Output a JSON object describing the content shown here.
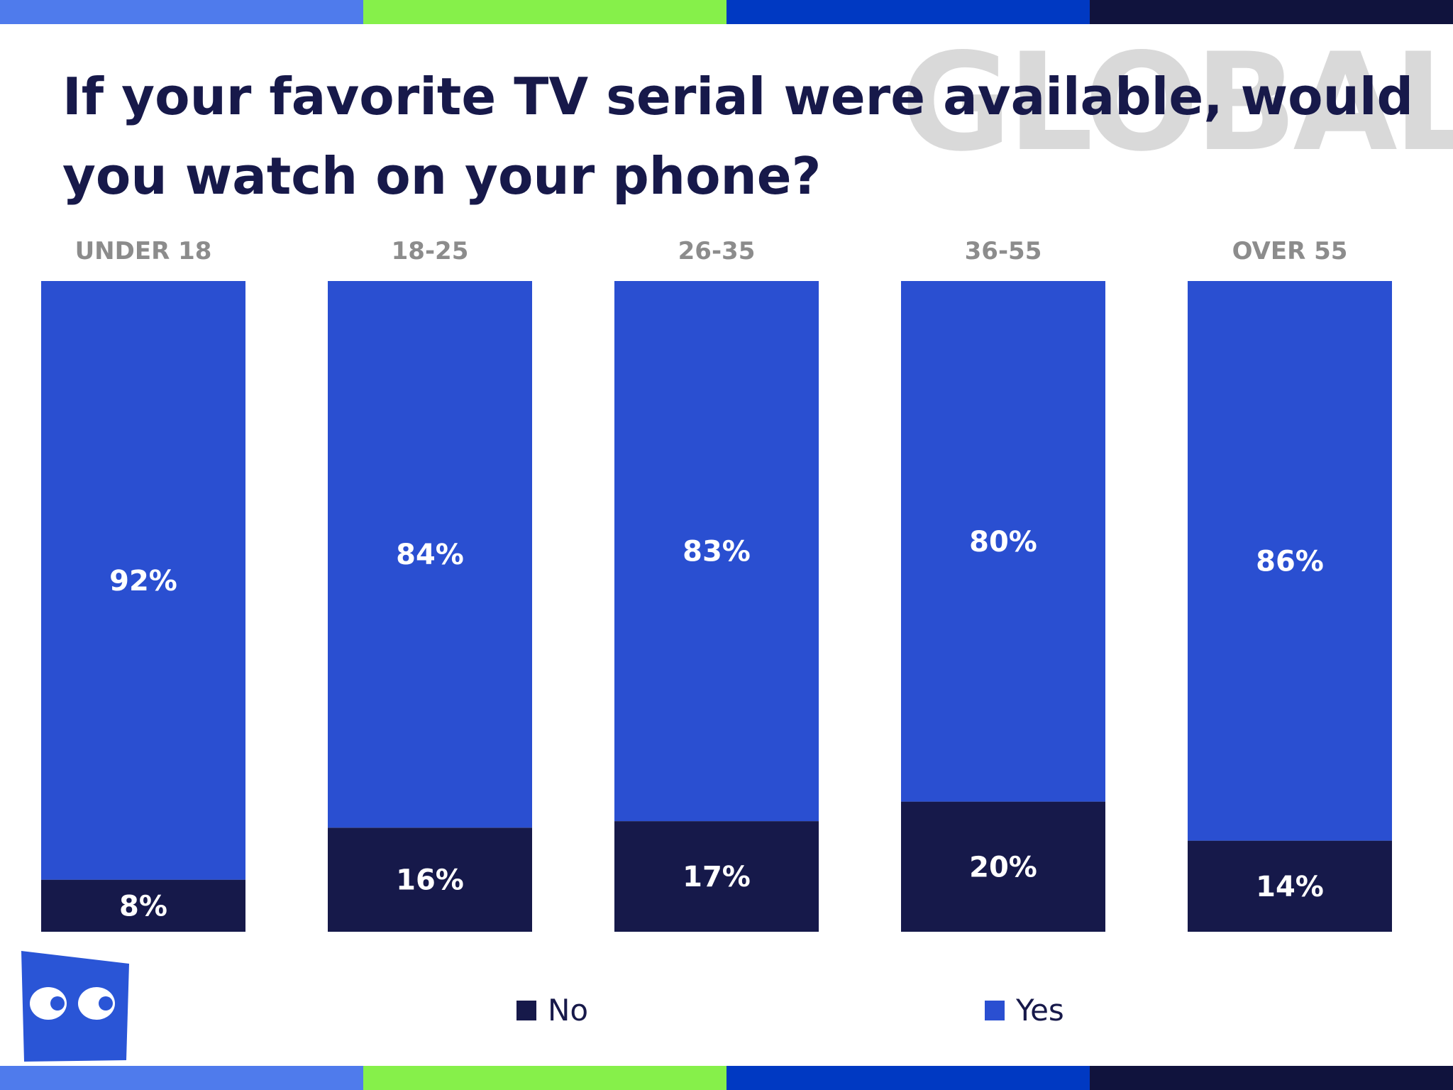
{
  "header": {
    "title": "If your favorite TV serial were available, would you watch on your phone?",
    "watermark": "GLOBAL"
  },
  "stripe_colors": [
    "#4f7bec",
    "#86f04a",
    "#0039c2",
    "#10133d"
  ],
  "colors": {
    "No": "#16194a",
    "Yes": "#2a4fd1"
  },
  "chart_data": {
    "type": "bar",
    "stacked": true,
    "categories": [
      "UNDER 18",
      "18-25",
      "26-35",
      "36-55",
      "OVER 55"
    ],
    "series": [
      {
        "name": "No",
        "values": [
          8,
          16,
          17,
          20,
          14
        ],
        "labels": [
          "8%",
          "16%",
          "17%",
          "20%",
          "14%"
        ]
      },
      {
        "name": "Yes",
        "values": [
          92,
          84,
          83,
          80,
          86
        ],
        "labels": [
          "92%",
          "84%",
          "83%",
          "80%",
          "86%"
        ]
      }
    ],
    "ylim": [
      0,
      100
    ],
    "grid": false,
    "legend": "bottom"
  },
  "logo": {
    "icon": "eyes-logo-icon",
    "color": "#2a55d6"
  }
}
